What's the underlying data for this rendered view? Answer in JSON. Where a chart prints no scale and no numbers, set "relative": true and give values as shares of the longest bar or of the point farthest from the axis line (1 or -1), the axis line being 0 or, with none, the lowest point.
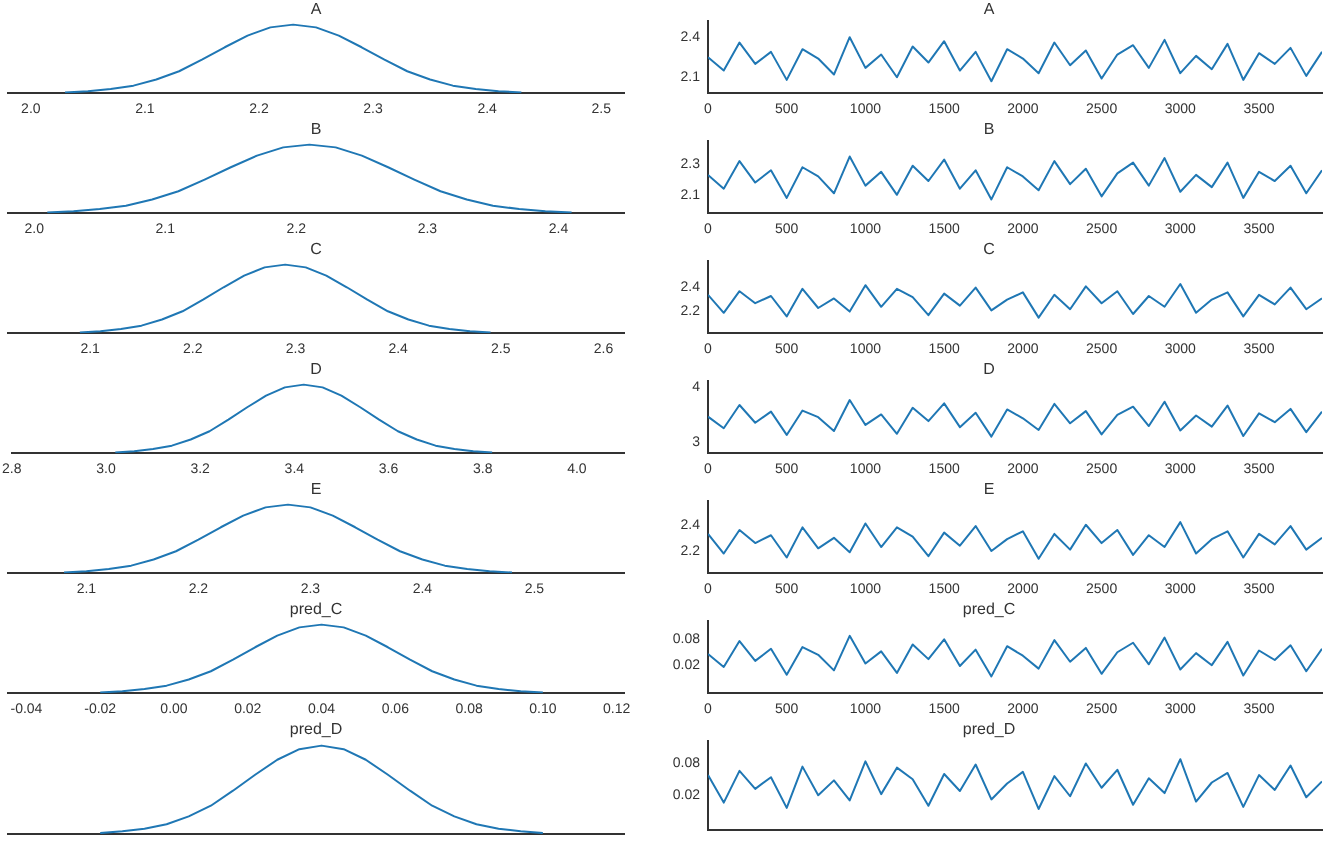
{
  "chart_data": [
    {
      "type": "line",
      "title": "A",
      "relative": true,
      "color": "#1f77b4",
      "xlim": [
        1.98,
        2.52
      ],
      "xticks": [
        {
          "value": 2.0,
          "label": "2.0"
        },
        2.1,
        2.2,
        2.3,
        2.4,
        2.5
      ],
      "x": [
        2.03,
        2.05,
        2.07,
        2.09,
        2.11,
        2.13,
        2.15,
        2.17,
        2.19,
        2.21,
        2.23,
        2.25,
        2.27,
        2.29,
        2.31,
        2.33,
        2.35,
        2.37,
        2.39,
        2.41,
        2.43
      ],
      "values": [
        0.01,
        0.03,
        0.06,
        0.11,
        0.2,
        0.32,
        0.49,
        0.67,
        0.84,
        0.96,
        1,
        0.96,
        0.84,
        0.67,
        0.49,
        0.32,
        0.2,
        0.11,
        0.06,
        0.03,
        0.01
      ]
    },
    {
      "type": "line",
      "title": "A",
      "color": "#1f77b4",
      "xlim": [
        0,
        3900
      ],
      "xticks": [
        0,
        500,
        1000,
        1500,
        2000,
        2500,
        3000,
        3500
      ],
      "ylim": [
        1.98,
        2.52
      ],
      "yticks": [
        2.1,
        2.4
      ],
      "x": [
        0,
        100,
        200,
        300,
        400,
        500,
        600,
        700,
        800,
        900,
        1000,
        1100,
        1200,
        1300,
        1400,
        1500,
        1600,
        1700,
        1800,
        1900,
        2000,
        2100,
        2200,
        2300,
        2400,
        2500,
        2600,
        2700,
        2800,
        2900,
        3000,
        3100,
        3200,
        3300,
        3400,
        3500,
        3600,
        3700,
        3800,
        3900
      ],
      "values": [
        2.25,
        2.15,
        2.36,
        2.2,
        2.29,
        2.08,
        2.31,
        2.24,
        2.12,
        2.4,
        2.17,
        2.27,
        2.1,
        2.33,
        2.21,
        2.37,
        2.15,
        2.29,
        2.07,
        2.31,
        2.24,
        2.13,
        2.36,
        2.19,
        2.3,
        2.09,
        2.27,
        2.34,
        2.17,
        2.38,
        2.13,
        2.26,
        2.16,
        2.35,
        2.08,
        2.28,
        2.2,
        2.32,
        2.11,
        2.29
      ]
    },
    {
      "type": "line",
      "title": "B",
      "relative": true,
      "color": "#1f77b4",
      "xlim": [
        1.98,
        2.45
      ],
      "xticks": [
        {
          "value": 2.0,
          "label": "2.0"
        },
        2.1,
        2.2,
        2.3,
        2.4
      ],
      "x": [
        2.01,
        2.03,
        2.05,
        2.07,
        2.09,
        2.11,
        2.13,
        2.15,
        2.17,
        2.19,
        2.21,
        2.23,
        2.25,
        2.27,
        2.29,
        2.31,
        2.33,
        2.35,
        2.37,
        2.39,
        2.41
      ],
      "values": [
        0.01,
        0.03,
        0.06,
        0.11,
        0.2,
        0.32,
        0.49,
        0.67,
        0.84,
        0.96,
        1,
        0.96,
        0.84,
        0.67,
        0.49,
        0.32,
        0.2,
        0.11,
        0.06,
        0.03,
        0.01
      ]
    },
    {
      "type": "line",
      "title": "B",
      "color": "#1f77b4",
      "xlim": [
        0,
        3900
      ],
      "xticks": [
        0,
        500,
        1000,
        1500,
        2000,
        2500,
        3000,
        3500
      ],
      "ylim": [
        1.98,
        2.45
      ],
      "yticks": [
        2.1,
        2.3
      ],
      "x": [
        0,
        100,
        200,
        300,
        400,
        500,
        600,
        700,
        800,
        900,
        1000,
        1100,
        1200,
        1300,
        1400,
        1500,
        1600,
        1700,
        1800,
        1900,
        2000,
        2100,
        2200,
        2300,
        2400,
        2500,
        2600,
        2700,
        2800,
        2900,
        3000,
        3100,
        3200,
        3300,
        3400,
        3500,
        3600,
        3700,
        3800,
        3900
      ],
      "values": [
        2.23,
        2.14,
        2.32,
        2.18,
        2.26,
        2.08,
        2.28,
        2.22,
        2.11,
        2.35,
        2.16,
        2.25,
        2.1,
        2.29,
        2.19,
        2.33,
        2.14,
        2.26,
        2.07,
        2.28,
        2.22,
        2.13,
        2.32,
        2.17,
        2.27,
        2.09,
        2.24,
        2.31,
        2.16,
        2.34,
        2.12,
        2.23,
        2.15,
        2.31,
        2.08,
        2.25,
        2.19,
        2.29,
        2.11,
        2.26
      ]
    },
    {
      "type": "line",
      "title": "C",
      "relative": true,
      "color": "#1f77b4",
      "xlim": [
        2.02,
        2.62
      ],
      "xticks": [
        2.1,
        2.2,
        2.3,
        2.4,
        2.5,
        2.6
      ],
      "x": [
        2.09,
        2.11,
        2.13,
        2.15,
        2.17,
        2.19,
        2.21,
        2.23,
        2.25,
        2.27,
        2.29,
        2.31,
        2.33,
        2.35,
        2.37,
        2.39,
        2.41,
        2.43,
        2.45,
        2.47,
        2.49
      ],
      "values": [
        0.01,
        0.03,
        0.06,
        0.11,
        0.2,
        0.32,
        0.49,
        0.67,
        0.84,
        0.96,
        1,
        0.96,
        0.84,
        0.67,
        0.49,
        0.32,
        0.2,
        0.11,
        0.06,
        0.03,
        0.01
      ]
    },
    {
      "type": "line",
      "title": "C",
      "color": "#1f77b4",
      "xlim": [
        0,
        3900
      ],
      "xticks": [
        0,
        500,
        1000,
        1500,
        2000,
        2500,
        3000,
        3500
      ],
      "ylim": [
        2.02,
        2.62
      ],
      "yticks": [
        2.2,
        2.4
      ],
      "x": [
        0,
        100,
        200,
        300,
        400,
        500,
        600,
        700,
        800,
        900,
        1000,
        1100,
        1200,
        1300,
        1400,
        1500,
        1600,
        1700,
        1800,
        1900,
        2000,
        2100,
        2200,
        2300,
        2400,
        2500,
        2600,
        2700,
        2800,
        2900,
        3000,
        3100,
        3200,
        3300,
        3400,
        3500,
        3600,
        3700,
        3800,
        3900
      ],
      "values": [
        2.34,
        2.19,
        2.37,
        2.27,
        2.33,
        2.16,
        2.39,
        2.23,
        2.31,
        2.2,
        2.42,
        2.24,
        2.39,
        2.32,
        2.17,
        2.35,
        2.25,
        2.4,
        2.21,
        2.3,
        2.36,
        2.15,
        2.34,
        2.22,
        2.41,
        2.27,
        2.37,
        2.18,
        2.33,
        2.24,
        2.43,
        2.19,
        2.3,
        2.36,
        2.16,
        2.34,
        2.26,
        2.4,
        2.22,
        2.31
      ]
    },
    {
      "type": "line",
      "title": "D",
      "relative": true,
      "color": "#1f77b4",
      "xlim": [
        2.8,
        4.1
      ],
      "xticks": [
        2.8,
        {
          "value": 3.0,
          "label": "3.0"
        },
        3.2,
        3.4,
        3.6,
        3.8,
        {
          "value": 4.0,
          "label": "4.0"
        }
      ],
      "x": [
        3.02,
        3.06,
        3.1,
        3.14,
        3.18,
        3.22,
        3.26,
        3.3,
        3.34,
        3.38,
        3.42,
        3.46,
        3.5,
        3.54,
        3.58,
        3.62,
        3.66,
        3.7,
        3.74,
        3.78,
        3.82
      ],
      "values": [
        0.01,
        0.03,
        0.06,
        0.11,
        0.2,
        0.32,
        0.49,
        0.67,
        0.84,
        0.96,
        1,
        0.96,
        0.84,
        0.67,
        0.49,
        0.32,
        0.2,
        0.11,
        0.06,
        0.03,
        0.01
      ]
    },
    {
      "type": "line",
      "title": "D",
      "color": "#1f77b4",
      "xlim": [
        0,
        3900
      ],
      "xticks": [
        0,
        500,
        1000,
        1500,
        2000,
        2500,
        3000,
        3500
      ],
      "ylim": [
        2.8,
        4.1
      ],
      "yticks": [
        3,
        4
      ],
      "x": [
        0,
        100,
        200,
        300,
        400,
        500,
        600,
        700,
        800,
        900,
        1000,
        1100,
        1200,
        1300,
        1400,
        1500,
        1600,
        1700,
        1800,
        1900,
        2000,
        2100,
        2200,
        2300,
        2400,
        2500,
        2600,
        2700,
        2800,
        2900,
        3000,
        3100,
        3200,
        3300,
        3400,
        3500,
        3600,
        3700,
        3800,
        3900
      ],
      "values": [
        3.46,
        3.25,
        3.67,
        3.35,
        3.55,
        3.13,
        3.57,
        3.45,
        3.2,
        3.76,
        3.31,
        3.5,
        3.15,
        3.62,
        3.38,
        3.7,
        3.27,
        3.53,
        3.1,
        3.59,
        3.43,
        3.22,
        3.69,
        3.34,
        3.56,
        3.14,
        3.49,
        3.64,
        3.29,
        3.73,
        3.21,
        3.48,
        3.28,
        3.66,
        3.11,
        3.52,
        3.36,
        3.6,
        3.18,
        3.55
      ]
    },
    {
      "type": "line",
      "title": "E",
      "relative": true,
      "color": "#1f77b4",
      "xlim": [
        2.03,
        2.58
      ],
      "xticks": [
        2.1,
        2.2,
        2.3,
        2.4,
        2.5
      ],
      "x": [
        2.08,
        2.1,
        2.12,
        2.14,
        2.16,
        2.18,
        2.2,
        2.22,
        2.24,
        2.26,
        2.28,
        2.3,
        2.32,
        2.34,
        2.36,
        2.38,
        2.4,
        2.42,
        2.44,
        2.46,
        2.48
      ],
      "values": [
        0.01,
        0.03,
        0.06,
        0.11,
        0.2,
        0.32,
        0.49,
        0.67,
        0.84,
        0.96,
        1,
        0.96,
        0.84,
        0.67,
        0.49,
        0.32,
        0.2,
        0.11,
        0.06,
        0.03,
        0.01
      ]
    },
    {
      "type": "line",
      "title": "E",
      "color": "#1f77b4",
      "xlim": [
        0,
        3900
      ],
      "xticks": [
        0,
        500,
        1000,
        1500,
        2000,
        2500,
        3000,
        3500
      ],
      "ylim": [
        2.03,
        2.58
      ],
      "yticks": [
        2.2,
        2.4
      ],
      "x": [
        0,
        100,
        200,
        300,
        400,
        500,
        600,
        700,
        800,
        900,
        1000,
        1100,
        1200,
        1300,
        1400,
        1500,
        1600,
        1700,
        1800,
        1900,
        2000,
        2100,
        2200,
        2300,
        2400,
        2500,
        2600,
        2700,
        2800,
        2900,
        3000,
        3100,
        3200,
        3300,
        3400,
        3500,
        3600,
        3700,
        3800,
        3900
      ],
      "values": [
        2.33,
        2.18,
        2.36,
        2.26,
        2.32,
        2.15,
        2.38,
        2.22,
        2.3,
        2.19,
        2.41,
        2.23,
        2.38,
        2.31,
        2.16,
        2.34,
        2.24,
        2.39,
        2.2,
        2.29,
        2.35,
        2.14,
        2.33,
        2.21,
        2.4,
        2.26,
        2.36,
        2.17,
        2.32,
        2.23,
        2.42,
        2.18,
        2.29,
        2.35,
        2.15,
        2.33,
        2.25,
        2.39,
        2.21,
        2.3
      ]
    },
    {
      "type": "line",
      "title": "pred_C",
      "relative": true,
      "color": "#1f77b4",
      "xlim": [
        -0.045,
        0.122
      ],
      "xticks": [
        -0.04,
        -0.02,
        {
          "value": 0,
          "label": "0.00"
        },
        0.02,
        0.04,
        0.06,
        0.08,
        {
          "value": 0.1,
          "label": "0.10"
        },
        0.12
      ],
      "x": [
        -0.02,
        -0.014,
        -0.008,
        -0.002,
        0.004,
        0.01,
        0.016,
        0.022,
        0.028,
        0.034,
        0.04,
        0.046,
        0.052,
        0.058,
        0.064,
        0.07,
        0.076,
        0.082,
        0.088,
        0.094,
        0.1
      ],
      "values": [
        0.01,
        0.03,
        0.06,
        0.11,
        0.2,
        0.32,
        0.49,
        0.67,
        0.84,
        0.96,
        1,
        0.96,
        0.84,
        0.67,
        0.49,
        0.32,
        0.2,
        0.11,
        0.06,
        0.03,
        0.01
      ]
    },
    {
      "type": "line",
      "title": "pred_C",
      "color": "#1f77b4",
      "xlim": [
        0,
        3900
      ],
      "xticks": [
        0,
        500,
        1000,
        1500,
        2000,
        2500,
        3000,
        3500
      ],
      "ylim": [
        -0.045,
        0.122
      ],
      "yticks": [
        0.02,
        0.08
      ],
      "x": [
        0,
        100,
        200,
        300,
        400,
        500,
        600,
        700,
        800,
        900,
        1000,
        1100,
        1200,
        1300,
        1400,
        1500,
        1600,
        1700,
        1800,
        1900,
        2000,
        2100,
        2200,
        2300,
        2400,
        2500,
        2600,
        2700,
        2800,
        2900,
        3000,
        3100,
        3200,
        3300,
        3400,
        3500,
        3600,
        3700,
        3800,
        3900
      ],
      "values": [
        0.046,
        0.016,
        0.076,
        0.03,
        0.058,
        -0.002,
        0.062,
        0.044,
        0.008,
        0.088,
        0.024,
        0.052,
        0.002,
        0.068,
        0.034,
        0.08,
        0.018,
        0.056,
        -0.006,
        0.064,
        0.042,
        0.012,
        0.078,
        0.028,
        0.06,
        0.0,
        0.05,
        0.072,
        0.022,
        0.084,
        0.01,
        0.048,
        0.02,
        0.074,
        -0.004,
        0.054,
        0.032,
        0.066,
        0.006,
        0.058
      ]
    },
    {
      "type": "line",
      "title": "pred_D",
      "relative": true,
      "tick_labels": false,
      "color": "#1f77b4",
      "xlim": [
        -0.045,
        0.122
      ],
      "x": [
        -0.02,
        -0.014,
        -0.008,
        -0.002,
        0.004,
        0.01,
        0.016,
        0.022,
        0.028,
        0.034,
        0.04,
        0.046,
        0.052,
        0.058,
        0.064,
        0.07,
        0.076,
        0.082,
        0.088,
        0.094,
        0.1
      ],
      "values": [
        0.01,
        0.03,
        0.06,
        0.11,
        0.2,
        0.32,
        0.49,
        0.67,
        0.84,
        0.96,
        1,
        0.96,
        0.84,
        0.67,
        0.49,
        0.32,
        0.2,
        0.11,
        0.06,
        0.03,
        0.01
      ]
    },
    {
      "type": "line",
      "title": "pred_D",
      "tick_labels": "y",
      "color": "#1f77b4",
      "xlim": [
        0,
        3900
      ],
      "ylim": [
        -0.045,
        0.122
      ],
      "yticks": [
        0.02,
        0.08
      ],
      "x": [
        0,
        100,
        200,
        300,
        400,
        500,
        600,
        700,
        800,
        900,
        1000,
        1100,
        1200,
        1300,
        1400,
        1500,
        1600,
        1700,
        1800,
        1900,
        2000,
        2100,
        2200,
        2300,
        2400,
        2500,
        2600,
        2700,
        2800,
        2900,
        3000,
        3100,
        3200,
        3300,
        3400,
        3500,
        3600,
        3700,
        3800,
        3900
      ],
      "values": [
        0.058,
        0.006,
        0.066,
        0.032,
        0.054,
        -0.004,
        0.074,
        0.02,
        0.048,
        0.01,
        0.084,
        0.022,
        0.072,
        0.05,
        0.0,
        0.06,
        0.028,
        0.078,
        0.012,
        0.042,
        0.064,
        -0.006,
        0.056,
        0.018,
        0.08,
        0.034,
        0.068,
        0.002,
        0.052,
        0.024,
        0.088,
        0.008,
        0.044,
        0.062,
        -0.002,
        0.058,
        0.03,
        0.076,
        0.016,
        0.046
      ]
    }
  ]
}
